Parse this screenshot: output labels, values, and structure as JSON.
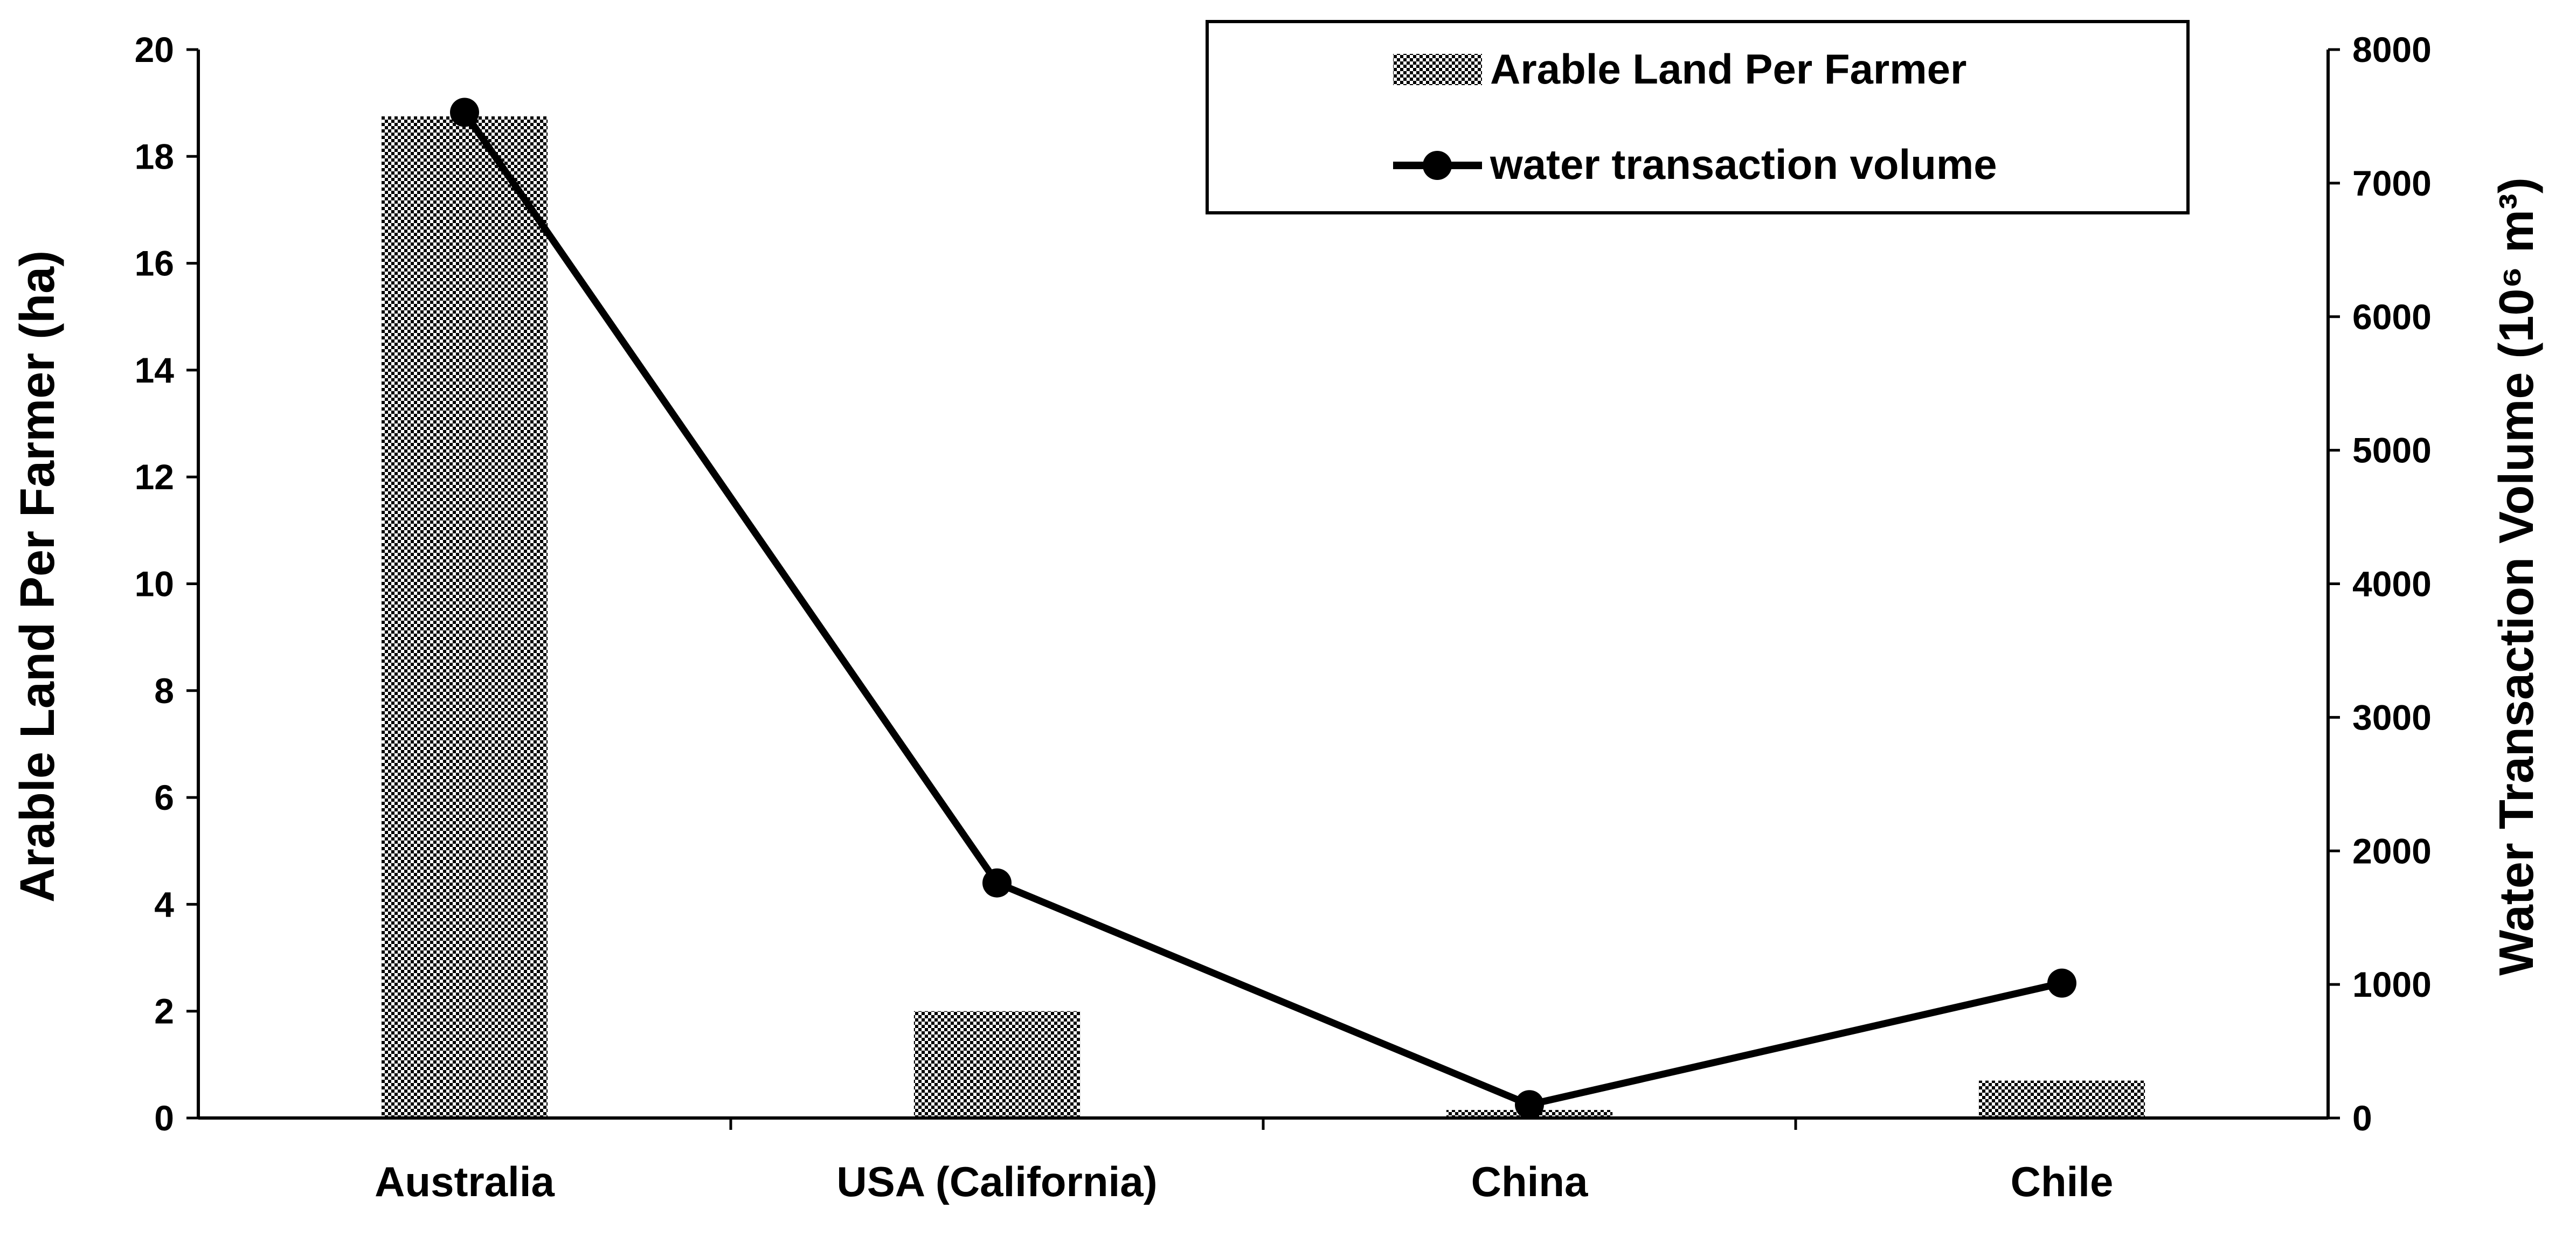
{
  "chart_data": {
    "type": "bar",
    "categories": [
      "Australia",
      "USA (California)",
      "China",
      "Chile"
    ],
    "series": [
      {
        "name": "Arable Land Per Farmer",
        "type": "bar",
        "axis": "left",
        "values": [
          18.75,
          2.0,
          0.15,
          0.7
        ]
      },
      {
        "name": "water transaction volume",
        "type": "line",
        "axis": "right",
        "values": [
          7530,
          1760,
          100,
          1010
        ]
      }
    ],
    "ylabel": "Arable Land Per Farmer (ha)",
    "ylabel_right": "Water Transaction Volume (10⁶ m³)",
    "ylim": [
      0,
      20
    ],
    "ylim_right": [
      0,
      8000
    ],
    "yticks": [
      "0",
      "2",
      "4",
      "6",
      "8",
      "10",
      "12",
      "14",
      "16",
      "18",
      "20"
    ],
    "yticks_right": [
      "0",
      "1000",
      "2000",
      "3000",
      "4000",
      "5000",
      "6000",
      "7000",
      "8000"
    ],
    "legend_position": "top-right",
    "grid": false,
    "bar_fill": "crosshatch",
    "colors": {
      "line": "#000000",
      "bar": "#000000"
    }
  }
}
